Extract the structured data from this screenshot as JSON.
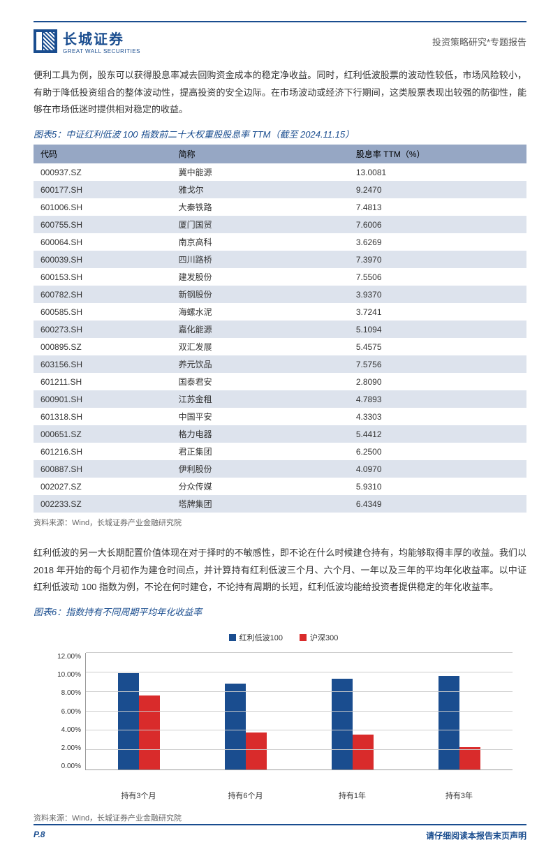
{
  "header": {
    "logo_cn": "长城证券",
    "logo_en": "GREAT WALL SECURITIES",
    "right": "投资策略研究*专题报告"
  },
  "para1": "便利工具为例，股东可以获得股息率减去回购资金成本的稳定净收益。同时，红利低波股票的波动性较低，市场风险较小，有助于降低投资组合的整体波动性，提高投资的安全边际。在市场波动或经济下行期间，这类股票表现出较强的防御性，能够在市场低迷时提供相对稳定的收益。",
  "table5": {
    "title": "图表5：中证红利低波 100 指数前二十大权重股股息率 TTM（截至 2024.11.15）",
    "headers": [
      "代码",
      "简称",
      "股息率 TTM（%）"
    ],
    "rows": [
      [
        "000937.SZ",
        "冀中能源",
        "13.0081"
      ],
      [
        "600177.SH",
        "雅戈尔",
        "9.2470"
      ],
      [
        "601006.SH",
        "大秦铁路",
        "7.4813"
      ],
      [
        "600755.SH",
        "厦门国贸",
        "7.6006"
      ],
      [
        "600064.SH",
        "南京高科",
        "3.6269"
      ],
      [
        "600039.SH",
        "四川路桥",
        "7.3970"
      ],
      [
        "600153.SH",
        "建发股份",
        "7.5506"
      ],
      [
        "600782.SH",
        "新钢股份",
        "3.9370"
      ],
      [
        "600585.SH",
        "海螺水泥",
        "3.7241"
      ],
      [
        "600273.SH",
        "嘉化能源",
        "5.1094"
      ],
      [
        "000895.SZ",
        "双汇发展",
        "5.4575"
      ],
      [
        "603156.SH",
        "养元饮品",
        "7.5756"
      ],
      [
        "601211.SH",
        "国泰君安",
        "2.8090"
      ],
      [
        "600901.SH",
        "江苏金租",
        "4.7893"
      ],
      [
        "601318.SH",
        "中国平安",
        "4.3303"
      ],
      [
        "000651.SZ",
        "格力电器",
        "5.4412"
      ],
      [
        "601216.SH",
        "君正集团",
        "6.2500"
      ],
      [
        "600887.SH",
        "伊利股份",
        "4.0970"
      ],
      [
        "002027.SZ",
        "分众传媒",
        "5.9310"
      ],
      [
        "002233.SZ",
        "塔牌集团",
        "6.4349"
      ]
    ],
    "source": "资料来源：Wind，长城证券产业金融研究院"
  },
  "para2": "红利低波的另一大长期配置价值体现在对于择时的不敏感性，即不论在什么时候建仓持有，均能够取得丰厚的收益。我们以 2018 年开始的每个月初作为建仓时间点，并计算持有红利低波三个月、六个月、一年以及三年的平均年化收益率。以中证红利低波动 100 指数为例，不论在何时建仓，不论持有周期的长短，红利低波均能给投资者提供稳定的年化收益率。",
  "chart6": {
    "title": "图表6：指数持有不同周期平均年化收益率",
    "legend": [
      {
        "label": "红利低波100",
        "color": "#1a4d8f"
      },
      {
        "label": "沪深300",
        "color": "#d92b2b"
      }
    ],
    "y_ticks": [
      "0.00%",
      "2.00%",
      "4.00%",
      "6.00%",
      "8.00%",
      "10.00%",
      "12.00%"
    ],
    "y_max": 12,
    "categories": [
      "持有3个月",
      "持有6个月",
      "持有1年",
      "持有3年"
    ],
    "series": [
      {
        "color": "#1a4d8f",
        "values": [
          9.9,
          8.8,
          9.3,
          9.6
        ]
      },
      {
        "color": "#d92b2b",
        "values": [
          7.6,
          3.8,
          3.6,
          2.3
        ]
      }
    ],
    "grid_color": "#cccccc",
    "source": "资料来源：Wind，长城证券产业金融研究院"
  },
  "footer": {
    "page": "P.8",
    "note": "请仔细阅读本报告末页声明"
  }
}
